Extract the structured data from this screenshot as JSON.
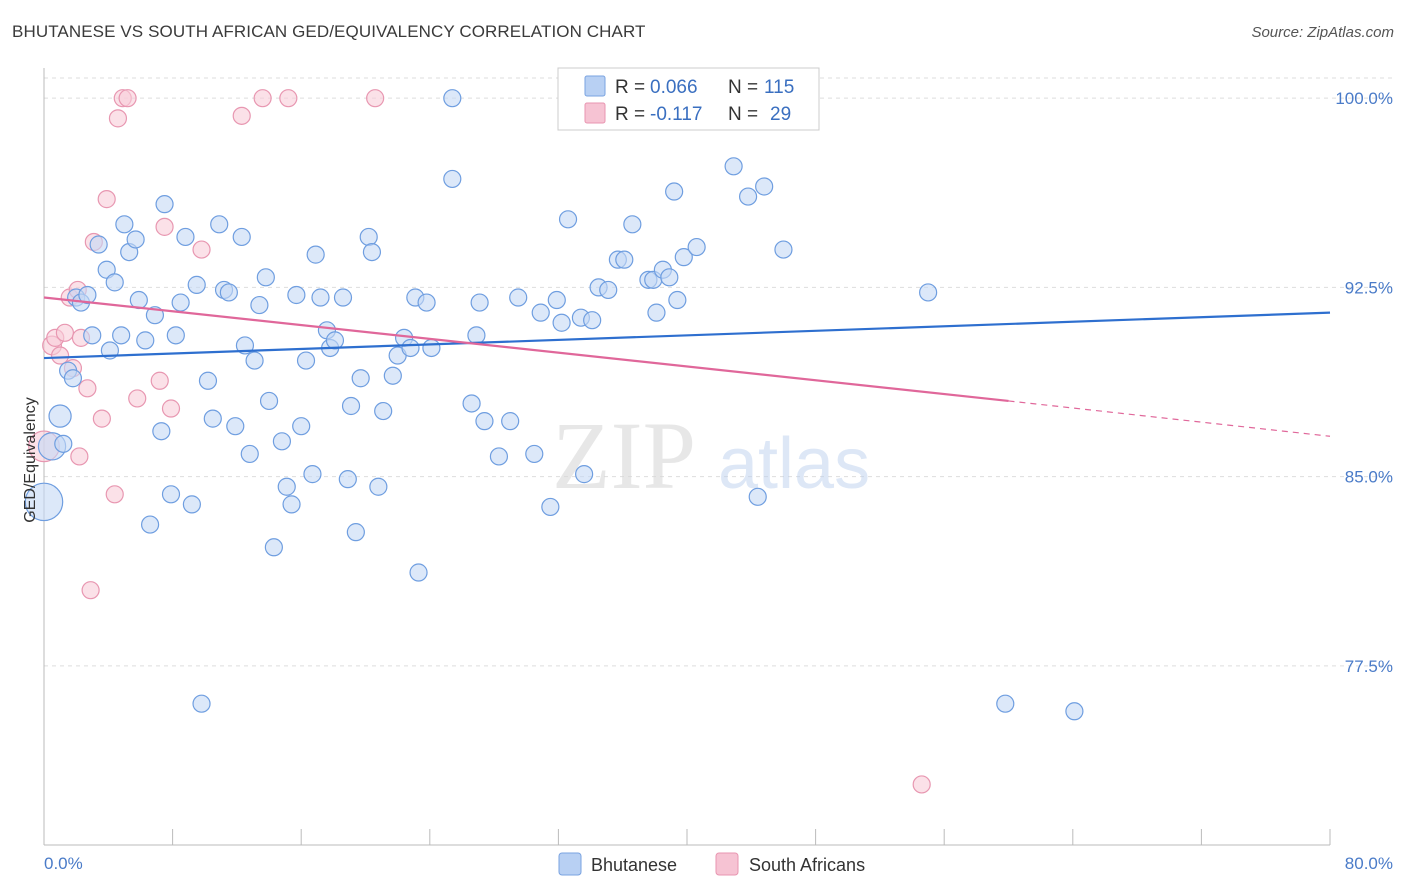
{
  "title": "BHUTANESE VS SOUTH AFRICAN GED/EQUIVALENCY CORRELATION CHART",
  "source": "Source: ZipAtlas.com",
  "watermark": {
    "zip": "ZIP",
    "atlas": "atlas"
  },
  "legend": {
    "rows": [
      {
        "r_label": "R = ",
        "r_value": "0.066",
        "n_label": "N = ",
        "n_value": "115",
        "fill": "#b8d0f3",
        "stroke": "#7aa3e0"
      },
      {
        "r_label": "R = ",
        "r_value": "-0.117",
        "n_label": "N = ",
        "n_value": "29",
        "fill": "#f6c3d3",
        "stroke": "#e895b0"
      }
    ]
  },
  "colors": {
    "blue_fill": "#c5d8f5",
    "blue_stroke": "#6f9ee0",
    "blue_line": "#2e6fcf",
    "pink_fill": "#f8cdd9",
    "pink_stroke": "#e897b1",
    "pink_line": "#e0679a",
    "grid": "#dddddd",
    "axis_text": "#4a7bc8"
  },
  "chart_data": {
    "type": "scatter",
    "title": "BHUTANESE VS SOUTH AFRICAN GED/EQUIVALENCY CORRELATION CHART",
    "xlabel": "",
    "ylabel": "GED/Equivalency",
    "xlim": [
      0,
      80
    ],
    "ylim": [
      70.4,
      100.8
    ],
    "x_tick_labels": [
      "0.0%",
      "80.0%"
    ],
    "y_ticks": [
      77.5,
      85.0,
      92.5,
      100.0
    ],
    "y_tick_labels": [
      "77.5%",
      "85.0%",
      "92.5%",
      "100.0%"
    ],
    "grid": "horizontal dashed",
    "legend_position": "top-center",
    "series": [
      {
        "name": "Bhutanese",
        "r": 0.066,
        "n": 115,
        "trend": {
          "x": [
            0,
            80
          ],
          "y": [
            89.7,
            91.5
          ]
        },
        "points": [
          {
            "x": 0.0,
            "y": 84.0,
            "s": 2.2
          },
          {
            "x": 0.5,
            "y": 86.2,
            "s": 1.6
          },
          {
            "x": 1.0,
            "y": 87.4,
            "s": 1.3
          },
          {
            "x": 1.2,
            "y": 86.3,
            "s": 1.0
          },
          {
            "x": 1.5,
            "y": 89.2,
            "s": 1.0
          },
          {
            "x": 1.8,
            "y": 88.9,
            "s": 1.0
          },
          {
            "x": 2.0,
            "y": 92.1,
            "s": 1.0
          },
          {
            "x": 2.3,
            "y": 91.9,
            "s": 1.0
          },
          {
            "x": 2.7,
            "y": 92.2,
            "s": 1.0
          },
          {
            "x": 3.0,
            "y": 90.6,
            "s": 1.0
          },
          {
            "x": 3.4,
            "y": 94.2,
            "s": 1.0
          },
          {
            "x": 3.9,
            "y": 93.2,
            "s": 1.0
          },
          {
            "x": 4.1,
            "y": 90.0,
            "s": 1.0
          },
          {
            "x": 4.4,
            "y": 92.7,
            "s": 1.0
          },
          {
            "x": 4.8,
            "y": 90.6,
            "s": 1.0
          },
          {
            "x": 5.0,
            "y": 95.0,
            "s": 1.0
          },
          {
            "x": 5.3,
            "y": 93.9,
            "s": 1.0
          },
          {
            "x": 5.7,
            "y": 94.4,
            "s": 1.0
          },
          {
            "x": 5.9,
            "y": 92.0,
            "s": 1.0
          },
          {
            "x": 6.3,
            "y": 90.4,
            "s": 1.0
          },
          {
            "x": 6.6,
            "y": 83.1,
            "s": 1.0
          },
          {
            "x": 6.9,
            "y": 91.4,
            "s": 1.0
          },
          {
            "x": 7.3,
            "y": 86.8,
            "s": 1.0
          },
          {
            "x": 7.5,
            "y": 95.8,
            "s": 1.0
          },
          {
            "x": 7.9,
            "y": 84.3,
            "s": 1.0
          },
          {
            "x": 8.2,
            "y": 90.6,
            "s": 1.0
          },
          {
            "x": 8.5,
            "y": 91.9,
            "s": 1.0
          },
          {
            "x": 8.8,
            "y": 94.5,
            "s": 1.0
          },
          {
            "x": 9.2,
            "y": 83.9,
            "s": 1.0
          },
          {
            "x": 9.5,
            "y": 92.6,
            "s": 1.0
          },
          {
            "x": 9.8,
            "y": 76.0,
            "s": 1.0
          },
          {
            "x": 10.2,
            "y": 88.8,
            "s": 1.0
          },
          {
            "x": 10.5,
            "y": 87.3,
            "s": 1.0
          },
          {
            "x": 10.9,
            "y": 95.0,
            "s": 1.0
          },
          {
            "x": 11.2,
            "y": 92.4,
            "s": 1.0
          },
          {
            "x": 11.5,
            "y": 92.3,
            "s": 1.0
          },
          {
            "x": 11.9,
            "y": 87.0,
            "s": 1.0
          },
          {
            "x": 12.3,
            "y": 94.5,
            "s": 1.0
          },
          {
            "x": 12.5,
            "y": 90.2,
            "s": 1.0
          },
          {
            "x": 12.8,
            "y": 85.9,
            "s": 1.0
          },
          {
            "x": 13.1,
            "y": 89.6,
            "s": 1.0
          },
          {
            "x": 13.4,
            "y": 91.8,
            "s": 1.0
          },
          {
            "x": 13.8,
            "y": 92.9,
            "s": 1.0
          },
          {
            "x": 14.0,
            "y": 88.0,
            "s": 1.0
          },
          {
            "x": 14.3,
            "y": 82.2,
            "s": 1.0
          },
          {
            "x": 14.8,
            "y": 86.4,
            "s": 1.0
          },
          {
            "x": 15.1,
            "y": 84.6,
            "s": 1.0
          },
          {
            "x": 15.4,
            "y": 83.9,
            "s": 1.0
          },
          {
            "x": 15.7,
            "y": 92.2,
            "s": 1.0
          },
          {
            "x": 16.0,
            "y": 87.0,
            "s": 1.0
          },
          {
            "x": 16.3,
            "y": 89.6,
            "s": 1.0
          },
          {
            "x": 16.7,
            "y": 85.1,
            "s": 1.0
          },
          {
            "x": 16.9,
            "y": 93.8,
            "s": 1.0
          },
          {
            "x": 17.2,
            "y": 92.1,
            "s": 1.0
          },
          {
            "x": 17.6,
            "y": 90.8,
            "s": 1.0
          },
          {
            "x": 17.8,
            "y": 90.1,
            "s": 1.0
          },
          {
            "x": 18.1,
            "y": 90.4,
            "s": 1.0
          },
          {
            "x": 18.6,
            "y": 92.1,
            "s": 1.0
          },
          {
            "x": 18.9,
            "y": 84.9,
            "s": 1.0
          },
          {
            "x": 19.1,
            "y": 87.8,
            "s": 1.0
          },
          {
            "x": 19.4,
            "y": 82.8,
            "s": 1.0
          },
          {
            "x": 19.7,
            "y": 88.9,
            "s": 1.0
          },
          {
            "x": 20.2,
            "y": 94.5,
            "s": 1.0
          },
          {
            "x": 20.4,
            "y": 93.9,
            "s": 1.0
          },
          {
            "x": 20.8,
            "y": 84.6,
            "s": 1.0
          },
          {
            "x": 21.1,
            "y": 87.6,
            "s": 1.0
          },
          {
            "x": 21.7,
            "y": 89.0,
            "s": 1.0
          },
          {
            "x": 22.0,
            "y": 89.8,
            "s": 1.0
          },
          {
            "x": 22.4,
            "y": 90.5,
            "s": 1.0
          },
          {
            "x": 22.8,
            "y": 90.1,
            "s": 1.0
          },
          {
            "x": 23.1,
            "y": 92.1,
            "s": 1.0
          },
          {
            "x": 23.3,
            "y": 81.2,
            "s": 1.0
          },
          {
            "x": 23.8,
            "y": 91.9,
            "s": 1.0
          },
          {
            "x": 24.1,
            "y": 90.1,
            "s": 1.0
          },
          {
            "x": 25.4,
            "y": 100.0,
            "s": 1.0
          },
          {
            "x": 25.4,
            "y": 96.8,
            "s": 1.0
          },
          {
            "x": 26.6,
            "y": 87.9,
            "s": 1.0
          },
          {
            "x": 26.9,
            "y": 90.6,
            "s": 1.0
          },
          {
            "x": 27.1,
            "y": 91.9,
            "s": 1.0
          },
          {
            "x": 27.4,
            "y": 87.2,
            "s": 1.0
          },
          {
            "x": 28.3,
            "y": 85.8,
            "s": 1.0
          },
          {
            "x": 29.0,
            "y": 87.2,
            "s": 1.0
          },
          {
            "x": 29.5,
            "y": 92.1,
            "s": 1.0
          },
          {
            "x": 30.5,
            "y": 85.9,
            "s": 1.0
          },
          {
            "x": 30.9,
            "y": 91.5,
            "s": 1.0
          },
          {
            "x": 31.5,
            "y": 83.8,
            "s": 1.0
          },
          {
            "x": 31.9,
            "y": 92.0,
            "s": 1.0
          },
          {
            "x": 32.2,
            "y": 91.1,
            "s": 1.0
          },
          {
            "x": 32.6,
            "y": 95.2,
            "s": 1.0
          },
          {
            "x": 33.4,
            "y": 91.3,
            "s": 1.0
          },
          {
            "x": 33.6,
            "y": 85.1,
            "s": 1.0
          },
          {
            "x": 34.1,
            "y": 91.2,
            "s": 1.0
          },
          {
            "x": 34.5,
            "y": 92.5,
            "s": 1.0
          },
          {
            "x": 35.1,
            "y": 92.4,
            "s": 1.0
          },
          {
            "x": 35.7,
            "y": 93.6,
            "s": 1.0
          },
          {
            "x": 36.1,
            "y": 93.6,
            "s": 1.0
          },
          {
            "x": 36.6,
            "y": 95.0,
            "s": 1.0
          },
          {
            "x": 37.6,
            "y": 92.8,
            "s": 1.0
          },
          {
            "x": 37.9,
            "y": 92.8,
            "s": 1.0
          },
          {
            "x": 38.1,
            "y": 91.5,
            "s": 1.0
          },
          {
            "x": 38.5,
            "y": 93.2,
            "s": 1.0
          },
          {
            "x": 38.9,
            "y": 92.9,
            "s": 1.0
          },
          {
            "x": 39.2,
            "y": 96.3,
            "s": 1.0
          },
          {
            "x": 39.4,
            "y": 92.0,
            "s": 1.0
          },
          {
            "x": 39.8,
            "y": 93.7,
            "s": 1.0
          },
          {
            "x": 40.6,
            "y": 94.1,
            "s": 1.0
          },
          {
            "x": 42.7,
            "y": 100.0,
            "s": 1.0
          },
          {
            "x": 42.9,
            "y": 97.3,
            "s": 1.0
          },
          {
            "x": 43.8,
            "y": 96.1,
            "s": 1.0
          },
          {
            "x": 44.4,
            "y": 84.2,
            "s": 1.0
          },
          {
            "x": 44.8,
            "y": 96.5,
            "s": 1.0
          },
          {
            "x": 46.0,
            "y": 94.0,
            "s": 1.0
          },
          {
            "x": 55.0,
            "y": 92.3,
            "s": 1.0
          },
          {
            "x": 59.8,
            "y": 76.0,
            "s": 1.0
          },
          {
            "x": 64.1,
            "y": 75.7,
            "s": 1.0
          }
        ]
      },
      {
        "name": "South Africans",
        "r": -0.117,
        "n": 29,
        "trend": {
          "x": [
            0,
            60
          ],
          "y": [
            92.1,
            88.0
          ],
          "dash_to": {
            "x": 80,
            "y": 86.6
          }
        },
        "points": [
          {
            "x": 0.0,
            "y": 86.2,
            "s": 1.8
          },
          {
            "x": 0.5,
            "y": 90.2,
            "s": 1.1
          },
          {
            "x": 0.7,
            "y": 90.5,
            "s": 1.0
          },
          {
            "x": 1.0,
            "y": 89.8,
            "s": 1.0
          },
          {
            "x": 1.3,
            "y": 90.7,
            "s": 1.0
          },
          {
            "x": 1.6,
            "y": 92.1,
            "s": 1.0
          },
          {
            "x": 1.8,
            "y": 89.3,
            "s": 1.0
          },
          {
            "x": 2.1,
            "y": 92.4,
            "s": 1.0
          },
          {
            "x": 2.3,
            "y": 90.5,
            "s": 1.0
          },
          {
            "x": 2.2,
            "y": 85.8,
            "s": 1.0
          },
          {
            "x": 2.7,
            "y": 88.5,
            "s": 1.0
          },
          {
            "x": 2.9,
            "y": 80.5,
            "s": 1.0
          },
          {
            "x": 3.1,
            "y": 94.3,
            "s": 1.0
          },
          {
            "x": 3.6,
            "y": 87.3,
            "s": 1.0
          },
          {
            "x": 3.9,
            "y": 96.0,
            "s": 1.0
          },
          {
            "x": 4.4,
            "y": 84.3,
            "s": 1.0
          },
          {
            "x": 4.6,
            "y": 99.2,
            "s": 1.0
          },
          {
            "x": 4.9,
            "y": 100.0,
            "s": 1.0
          },
          {
            "x": 5.2,
            "y": 100.0,
            "s": 1.0
          },
          {
            "x": 5.8,
            "y": 88.1,
            "s": 1.0
          },
          {
            "x": 7.2,
            "y": 88.8,
            "s": 1.0
          },
          {
            "x": 7.5,
            "y": 94.9,
            "s": 1.0
          },
          {
            "x": 7.9,
            "y": 87.7,
            "s": 1.0
          },
          {
            "x": 9.8,
            "y": 94.0,
            "s": 1.0
          },
          {
            "x": 12.3,
            "y": 99.3,
            "s": 1.0
          },
          {
            "x": 13.6,
            "y": 100.0,
            "s": 1.0
          },
          {
            "x": 15.2,
            "y": 100.0,
            "s": 1.0
          },
          {
            "x": 20.6,
            "y": 100.0,
            "s": 1.0
          },
          {
            "x": 54.6,
            "y": 72.8,
            "s": 1.0
          }
        ]
      }
    ]
  }
}
